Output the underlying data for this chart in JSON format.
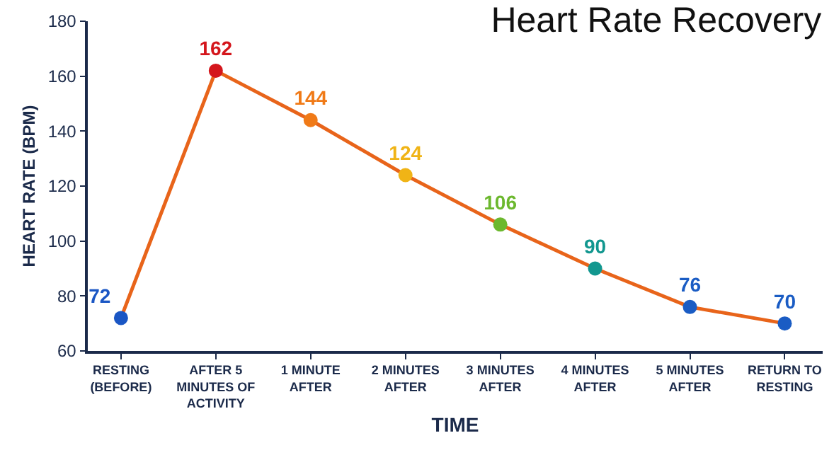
{
  "chart_data": {
    "type": "line",
    "title": "Heart Rate Recovery",
    "xlabel": "TIME",
    "ylabel": "HEART RATE (BPM)",
    "categories": [
      "RESTING (BEFORE)",
      "AFTER 5 MINUTES OF ACTIVITY",
      "1 MINUTE AFTER",
      "2 MINUTES AFTER",
      "3 MINUTES AFTER",
      "4 MINUTES AFTER",
      "5 MINUTES AFTER",
      "RETURN TO RESTING"
    ],
    "series": [
      {
        "color": "#e8641a",
        "values": [
          72,
          162,
          144,
          124,
          106,
          90,
          76,
          70
        ],
        "colors": [
          "#1a56c4",
          "#d4161c",
          "#f07a17",
          "#f0b416",
          "#6cb82e",
          "#12978f",
          "#1a5cc4",
          "#1a5cc4"
        ]
      }
    ],
    "ylim": [
      60,
      180
    ],
    "yticks": [
      60,
      80,
      100,
      120,
      140,
      160,
      180
    ],
    "marker": "circle",
    "line_style": "solid",
    "data_labels": true
  }
}
